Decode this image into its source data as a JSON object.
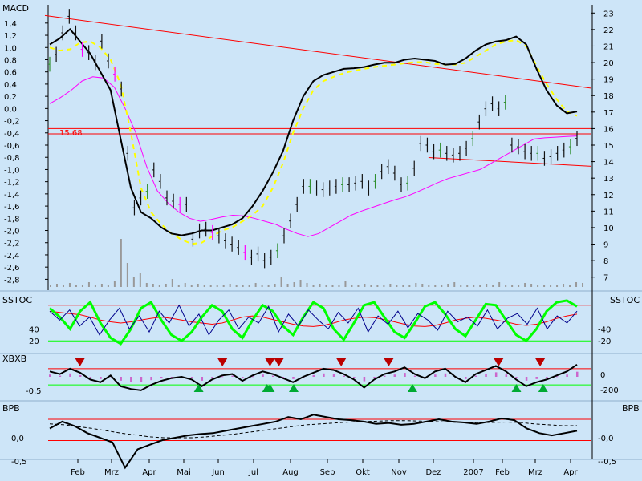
{
  "colors": {
    "background": "#cde5f8",
    "price_up": "#2f8f2f",
    "price_down": "#ff00ff",
    "price_bar": "#111111",
    "macd_line": "#000000",
    "signal_line": "#ffff00",
    "ma_line": "#ff00ff",
    "red_line": "#ff0000",
    "green_line": "#00ff00",
    "blue_line": "#00008b",
    "volume": "#999999"
  },
  "chart_data": [
    {
      "type": "line",
      "name": "price-macd-panel",
      "title": "MACD",
      "left_axis": {
        "ylim": [
          -2.9,
          1.7
        ],
        "ticks": [
          "1,4",
          "1,2",
          "1,0",
          "0,8",
          "0,6",
          "0,4",
          "0,2",
          "0,0",
          "-0,2",
          "-0,4",
          "-0,6",
          "-0,8",
          "-1,0",
          "-1,2",
          "-1,4",
          "-1,6",
          "-1,8",
          "-2,0",
          "-2,2",
          "-2,4",
          "-2,6",
          "-2,8"
        ]
      },
      "right_axis": {
        "ylim": [
          6.5,
          23.5
        ],
        "ticks": [
          "23",
          "22",
          "21",
          "20",
          "19",
          "18",
          "17",
          "16",
          "15",
          "14",
          "13",
          "12",
          "11",
          "10",
          "9",
          "8",
          "7"
        ]
      },
      "x": {
        "months": [
          "Feb",
          "Mrz",
          "Apr",
          "Mai",
          "Jun",
          "Jul",
          "Aug",
          "Sep",
          "Okt",
          "Nov",
          "Dez",
          "2007",
          "Feb",
          "Mrz",
          "Apr"
        ]
      },
      "annotations": [
        {
          "label": "15.68",
          "value": 15.68
        }
      ],
      "series": [
        {
          "key": "price",
          "values": [
            19.9,
            20.5,
            21.8,
            22.8,
            21.8,
            20.8,
            20.6,
            20.0,
            21.3,
            20.1,
            19.3,
            18.4,
            14.5,
            11.2,
            11.8,
            12.2,
            13.5,
            12.8,
            11.8,
            11.6,
            11.4,
            11.4,
            9.3,
            9.8,
            9.9,
            9.7,
            9.5,
            9.2,
            9.0,
            8.8,
            8.5,
            8.2,
            8.4,
            8.0,
            8.2,
            8.6,
            9.5,
            10.4,
            11.4,
            12.5,
            12.5,
            12.4,
            12.3,
            12.4,
            12.5,
            12.6,
            12.6,
            12.7,
            12.8,
            12.4,
            12.8,
            13.4,
            13.7,
            13.3,
            12.6,
            12.7,
            13.6,
            15.1,
            15.0,
            14.6,
            14.7,
            14.5,
            14.4,
            14.5,
            14.8,
            15.4,
            16.4,
            17.2,
            17.5,
            17.2,
            17.6,
            15.0,
            14.9,
            14.6,
            14.5,
            14.5,
            14.2,
            14.3,
            14.5,
            14.7,
            14.9,
            15.4
          ]
        },
        {
          "key": "macd",
          "values": [
            1.05,
            1.15,
            1.3,
            1.1,
            0.9,
            0.6,
            0.3,
            -0.5,
            -1.3,
            -1.7,
            -1.8,
            -1.95,
            -2.05,
            -2.08,
            -2.05,
            -2.0,
            -2.0,
            -1.95,
            -1.9,
            -1.8,
            -1.6,
            -1.35,
            -1.05,
            -0.7,
            -0.2,
            0.2,
            0.45,
            0.55,
            0.6,
            0.65,
            0.66,
            0.68,
            0.72,
            0.75,
            0.75,
            0.8,
            0.82,
            0.8,
            0.78,
            0.72,
            0.73,
            0.82,
            0.95,
            1.05,
            1.1,
            1.12,
            1.18,
            1.05,
            0.65,
            0.3,
            0.05,
            -0.08,
            -0.05
          ]
        },
        {
          "key": "signal",
          "values": [
            1.0,
            0.95,
            0.97,
            1.08,
            1.1,
            1.0,
            0.8,
            0.4,
            -0.4,
            -1.3,
            -1.7,
            -1.9,
            -2.05,
            -2.15,
            -2.22,
            -2.2,
            -2.1,
            -2.0,
            -1.95,
            -1.85,
            -1.75,
            -1.6,
            -1.3,
            -0.9,
            -0.4,
            0.0,
            0.3,
            0.45,
            0.52,
            0.58,
            0.62,
            0.65,
            0.68,
            0.7,
            0.72,
            0.74,
            0.76,
            0.76,
            0.73,
            0.72,
            0.72,
            0.75,
            0.85,
            0.95,
            1.05,
            1.1,
            1.12,
            1.02,
            0.7,
            0.4,
            0.15,
            -0.05,
            -0.12
          ]
        },
        {
          "key": "ma",
          "values": [
            0.08,
            0.18,
            0.3,
            0.45,
            0.52,
            0.5,
            0.35,
            0.0,
            -0.4,
            -0.95,
            -1.35,
            -1.55,
            -1.7,
            -1.8,
            -1.85,
            -1.82,
            -1.78,
            -1.75,
            -1.76,
            -1.8,
            -1.85,
            -1.9,
            -1.98,
            -2.05,
            -2.1,
            -2.05,
            -1.95,
            -1.85,
            -1.75,
            -1.68,
            -1.62,
            -1.56,
            -1.5,
            -1.45,
            -1.38,
            -1.3,
            -1.22,
            -1.15,
            -1.1,
            -1.05,
            -1.0,
            -0.9,
            -0.8,
            -0.7,
            -0.6,
            -0.5,
            -0.48,
            -0.47,
            -0.46,
            -0.45
          ]
        }
      ],
      "trendlines": [
        {
          "from": [
            0,
            22.85
          ],
          "to": [
            100,
            18.45
          ]
        },
        {
          "from": [
            0,
            16.0
          ],
          "to": [
            100,
            16.0
          ]
        },
        {
          "from": [
            70,
            14.25
          ],
          "to": [
            100,
            13.72
          ]
        }
      ]
    },
    {
      "type": "line",
      "name": "sstoc-panel",
      "title": "SSTOC",
      "right_title": "SSTOC",
      "ylim": [
        0,
        100
      ],
      "left_ticks": [
        "40",
        "20"
      ],
      "right_ticks": [
        "40",
        "20"
      ],
      "levels": [
        80,
        20
      ],
      "series": [
        {
          "key": "blue",
          "values": [
            70,
            55,
            72,
            45,
            60,
            30,
            55,
            75,
            40,
            62,
            35,
            70,
            50,
            80,
            45,
            65,
            30,
            55,
            72,
            40,
            60,
            50,
            78,
            35,
            65,
            45,
            72,
            55,
            40,
            68,
            50,
            75,
            35,
            62,
            48,
            70,
            42,
            66,
            55,
            38,
            70,
            52,
            60,
            45,
            72,
            40,
            58,
            66,
            48,
            75,
            40,
            62,
            50,
            70
          ]
        },
        {
          "key": "green",
          "values": [
            75,
            60,
            40,
            70,
            85,
            50,
            25,
            15,
            40,
            75,
            85,
            55,
            30,
            20,
            35,
            60,
            80,
            70,
            40,
            25,
            55,
            80,
            70,
            45,
            30,
            60,
            85,
            75,
            40,
            22,
            50,
            80,
            85,
            60,
            35,
            25,
            50,
            78,
            85,
            65,
            40,
            28,
            55,
            82,
            80,
            55,
            30,
            20,
            40,
            70,
            85,
            88,
            78
          ]
        },
        {
          "key": "red",
          "values": [
            70,
            68,
            66,
            64,
            60,
            55,
            52,
            50,
            52,
            55,
            58,
            60,
            58,
            55,
            52,
            50,
            48,
            50,
            55,
            60,
            62,
            60,
            56,
            52,
            48,
            45,
            44,
            46,
            50,
            55,
            58,
            60,
            59,
            56,
            52,
            48,
            45,
            44,
            46,
            50,
            55,
            58,
            60,
            58,
            55,
            52,
            48,
            46,
            48,
            52,
            58,
            62,
            65
          ]
        }
      ]
    },
    {
      "type": "line",
      "name": "xbxb-panel",
      "title": "XBXB",
      "left_ticks": [
        "-0,5"
      ],
      "right_ticks": [
        "0",
        "-200"
      ],
      "levels": [
        0.3,
        -0.3
      ],
      "series": [
        {
          "key": "black",
          "values": [
            0.2,
            0.1,
            0.3,
            0.15,
            -0.1,
            -0.2,
            0.05,
            -0.35,
            -0.45,
            -0.5,
            -0.3,
            -0.15,
            -0.05,
            0.0,
            -0.1,
            -0.35,
            -0.1,
            0.05,
            0.1,
            -0.15,
            0.05,
            0.2,
            0.1,
            -0.05,
            -0.2,
            0.0,
            0.15,
            0.3,
            0.25,
            0.1,
            -0.1,
            -0.4,
            -0.1,
            0.1,
            0.2,
            0.35,
            0.1,
            -0.05,
            0.2,
            0.3,
            0.0,
            -0.2,
            0.1,
            0.25,
            0.4,
            0.2,
            -0.1,
            -0.35,
            -0.2,
            -0.1,
            0.05,
            0.2,
            0.45
          ]
        }
      ],
      "markers": {
        "down": [
          8,
          56,
          72,
          75,
          96,
          112,
          149,
          163
        ],
        "up": [
          48,
          71,
          72,
          80,
          120,
          155,
          181,
          164
        ]
      }
    },
    {
      "type": "line",
      "name": "bpb-panel",
      "title": "BPB",
      "right_title": "BPB",
      "ylim": [
        -0.85,
        0.85
      ],
      "left_ticks": [
        "0,0",
        "-0,5"
      ],
      "right_ticks": [
        "0,0",
        "-0,5"
      ],
      "levels": [
        0.4,
        -0.06
      ],
      "series": [
        {
          "key": "solid",
          "values": [
            0.2,
            0.35,
            0.25,
            0.1,
            0.0,
            -0.1,
            -0.65,
            -0.25,
            -0.15,
            -0.05,
            0.0,
            0.05,
            0.08,
            0.1,
            0.15,
            0.2,
            0.25,
            0.3,
            0.35,
            0.45,
            0.4,
            0.5,
            0.45,
            0.4,
            0.38,
            0.35,
            0.3,
            0.32,
            0.28,
            0.3,
            0.35,
            0.4,
            0.35,
            0.33,
            0.3,
            0.35,
            0.42,
            0.38,
            0.2,
            0.1,
            0.05,
            0.1,
            0.15
          ]
        },
        {
          "key": "dashed",
          "values": [
            0.3,
            0.28,
            0.24,
            0.2,
            0.15,
            0.1,
            0.06,
            0.02,
            0.0,
            0.0,
            0.0,
            0.02,
            0.05,
            0.08,
            0.12,
            0.16,
            0.2,
            0.24,
            0.28,
            0.3,
            0.32,
            0.34,
            0.35,
            0.36,
            0.37,
            0.37,
            0.36,
            0.35,
            0.34,
            0.33,
            0.33,
            0.33,
            0.34,
            0.33,
            0.3,
            0.28,
            0.26,
            0.26
          ]
        }
      ]
    }
  ]
}
